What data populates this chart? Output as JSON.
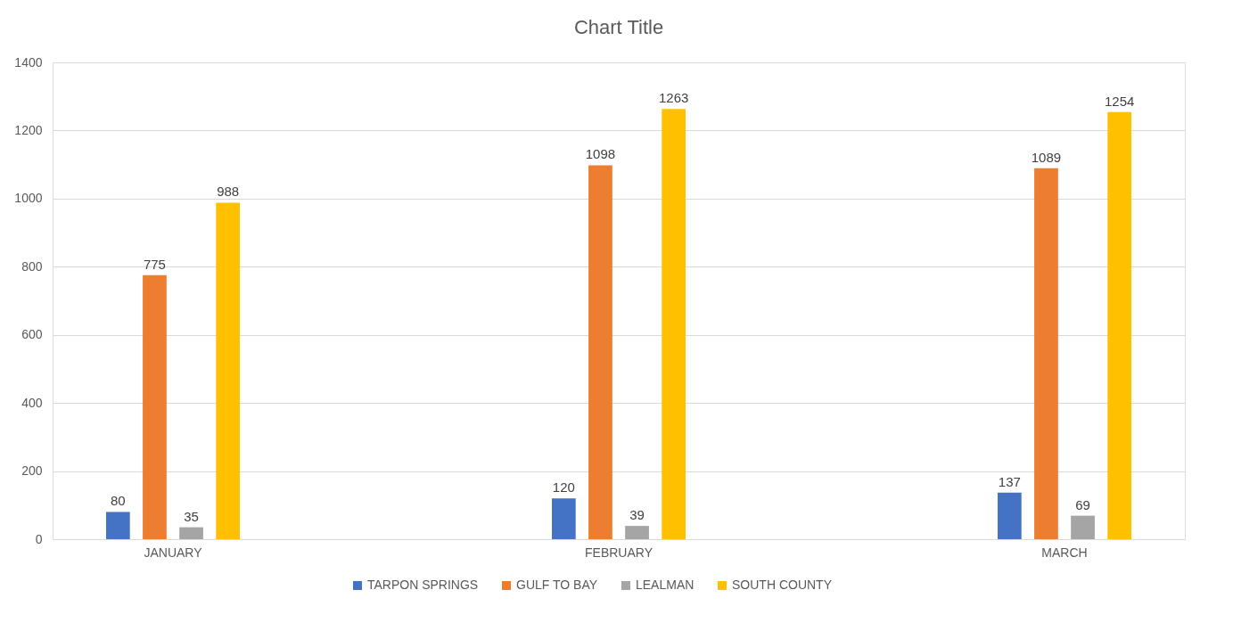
{
  "chart_data": {
    "type": "bar",
    "title": "Chart Title",
    "categories": [
      "JANUARY",
      "FEBRUARY",
      "MARCH"
    ],
    "series": [
      {
        "name": "TARPON SPRINGS",
        "color": "#4472c4",
        "values": [
          80,
          120,
          137
        ]
      },
      {
        "name": "GULF TO BAY",
        "color": "#ed7d31",
        "values": [
          775,
          1098,
          1089
        ]
      },
      {
        "name": "LEALMAN",
        "color": "#a5a5a5",
        "values": [
          35,
          39,
          69
        ]
      },
      {
        "name": "SOUTH COUNTY",
        "color": "#ffc000",
        "values": [
          988,
          1263,
          1254
        ]
      }
    ],
    "ylim": [
      0,
      1400
    ],
    "yticks": [
      0,
      200,
      400,
      600,
      800,
      1000,
      1200,
      1400
    ],
    "grid": "y",
    "legend": "bottom",
    "data_labels": true
  }
}
